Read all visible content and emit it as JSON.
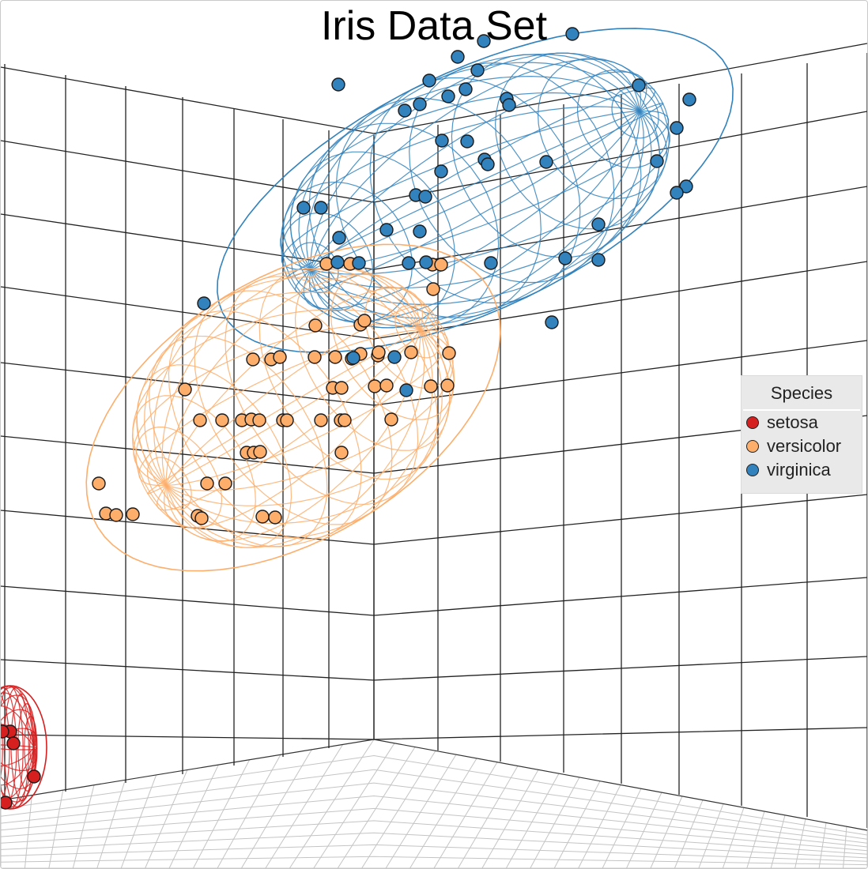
{
  "chart_data": {
    "type": "scatter",
    "title": "Iris Data Set",
    "legend": {
      "title": "Species",
      "placement": "right"
    },
    "grid": true,
    "series": [
      {
        "name": "setosa",
        "color": "#d62020",
        "points": [
          [
            12,
            925
          ],
          [
            2,
            925
          ],
          [
            16,
            940
          ],
          [
            42,
            982
          ],
          [
            6,
            1015
          ]
        ]
      },
      {
        "name": "versicolor",
        "color": "#fdae6b",
        "points": [
          [
            412,
            333
          ],
          [
            442,
            333
          ],
          [
            546,
            334
          ],
          [
            557,
            334
          ],
          [
            547,
            365
          ],
          [
            455,
            410
          ],
          [
            398,
            411
          ],
          [
            460,
            405
          ],
          [
            319,
            454
          ],
          [
            342,
            454
          ],
          [
            353,
            451
          ],
          [
            397,
            451
          ],
          [
            423,
            451
          ],
          [
            444,
            453
          ],
          [
            455,
            447
          ],
          [
            477,
            449
          ],
          [
            478,
            445
          ],
          [
            519,
            445
          ],
          [
            567,
            446
          ],
          [
            233,
            492
          ],
          [
            420,
            490
          ],
          [
            431,
            490
          ],
          [
            473,
            488
          ],
          [
            488,
            487
          ],
          [
            544,
            488
          ],
          [
            565,
            487
          ],
          [
            252,
            531
          ],
          [
            280,
            531
          ],
          [
            305,
            531
          ],
          [
            317,
            530
          ],
          [
            327,
            531
          ],
          [
            357,
            531
          ],
          [
            362,
            531
          ],
          [
            405,
            531
          ],
          [
            430,
            531
          ],
          [
            435,
            531
          ],
          [
            494,
            530
          ],
          [
            311,
            572
          ],
          [
            320,
            572
          ],
          [
            328,
            571
          ],
          [
            431,
            572
          ],
          [
            124,
            611
          ],
          [
            261,
            611
          ],
          [
            284,
            611
          ],
          [
            133,
            649
          ],
          [
            146,
            651
          ],
          [
            167,
            650
          ],
          [
            249,
            652
          ],
          [
            254,
            655
          ],
          [
            331,
            653
          ],
          [
            347,
            654
          ]
        ]
      },
      {
        "name": "virginica",
        "color": "#3182bd",
        "points": [
          [
            723,
            42
          ],
          [
            611,
            51
          ],
          [
            578,
            71
          ],
          [
            603,
            88
          ],
          [
            427,
            106
          ],
          [
            542,
            101
          ],
          [
            588,
            112
          ],
          [
            566,
            121
          ],
          [
            530,
            131
          ],
          [
            511,
            139
          ],
          [
            640,
            124
          ],
          [
            643,
            132
          ],
          [
            807,
            107
          ],
          [
            871,
            125
          ],
          [
            855,
            161
          ],
          [
            558,
            177
          ],
          [
            590,
            178
          ],
          [
            612,
            201
          ],
          [
            616,
            207
          ],
          [
            690,
            204
          ],
          [
            830,
            203
          ],
          [
            557,
            216
          ],
          [
            525,
            246
          ],
          [
            537,
            248
          ],
          [
            867,
            235
          ],
          [
            855,
            243
          ],
          [
            383,
            262
          ],
          [
            405,
            262
          ],
          [
            488,
            290
          ],
          [
            530,
            292
          ],
          [
            756,
            283
          ],
          [
            428,
            300
          ],
          [
            714,
            326
          ],
          [
            756,
            328
          ],
          [
            620,
            332
          ],
          [
            426,
            331
          ],
          [
            453,
            332
          ],
          [
            516,
            332
          ],
          [
            538,
            331
          ],
          [
            257,
            383
          ],
          [
            697,
            407
          ],
          [
            446,
            452
          ],
          [
            498,
            451
          ],
          [
            513,
            493
          ]
        ]
      }
    ]
  }
}
